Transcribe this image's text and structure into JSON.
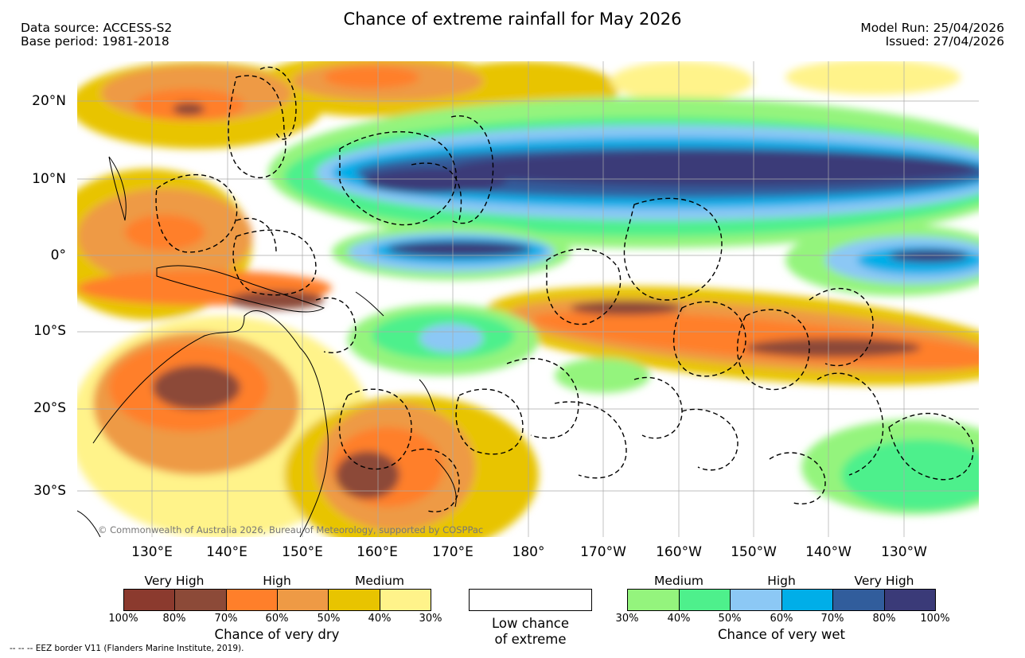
{
  "header": {
    "title": "Chance of extreme rainfall for May 2026",
    "data_source": "Data source: ACCESS-S2",
    "base_period": "Base period: 1981-2018",
    "model_run": "Model Run: 25/04/2026",
    "issued": "Issued: 27/04/2026"
  },
  "map": {
    "lat_labels": [
      "20°N",
      "10°N",
      "0°",
      "10°S",
      "20°S",
      "30°S"
    ],
    "lon_labels": [
      "130°E",
      "140°E",
      "150°E",
      "160°E",
      "170°E",
      "180°",
      "170°W",
      "160°W",
      "150°W",
      "140°W",
      "130°W"
    ],
    "copyright": "© Commonwealth of Australia 2026, Bureau of Meteorology, supported by COSPPac"
  },
  "legend": {
    "dry": {
      "headings": [
        "Very High",
        "High",
        "Medium"
      ],
      "ticks": [
        "100%",
        "80%",
        "70%",
        "60%",
        "50%",
        "40%",
        "30%"
      ],
      "colors": [
        "#8b3a2e",
        "#8c4a38",
        "#ff7f2a",
        "#ee9a45",
        "#e8c400",
        "#fff38a"
      ],
      "title": "Chance of very dry"
    },
    "low": {
      "line1": "Low chance",
      "line2": "of extreme"
    },
    "wet": {
      "headings": [
        "Medium",
        "High",
        "Very High"
      ],
      "ticks": [
        "30%",
        "40%",
        "50%",
        "60%",
        "70%",
        "80%",
        "100%"
      ],
      "colors": [
        "#94f47d",
        "#4ef08c",
        "#8cc8f5",
        "#00aee8",
        "#315d9c",
        "#3a3a78"
      ],
      "title": "Chance of very wet"
    },
    "eez_note": "-- -- -- EEZ border V11 (Flanders Marine Institute, 2019)."
  }
}
